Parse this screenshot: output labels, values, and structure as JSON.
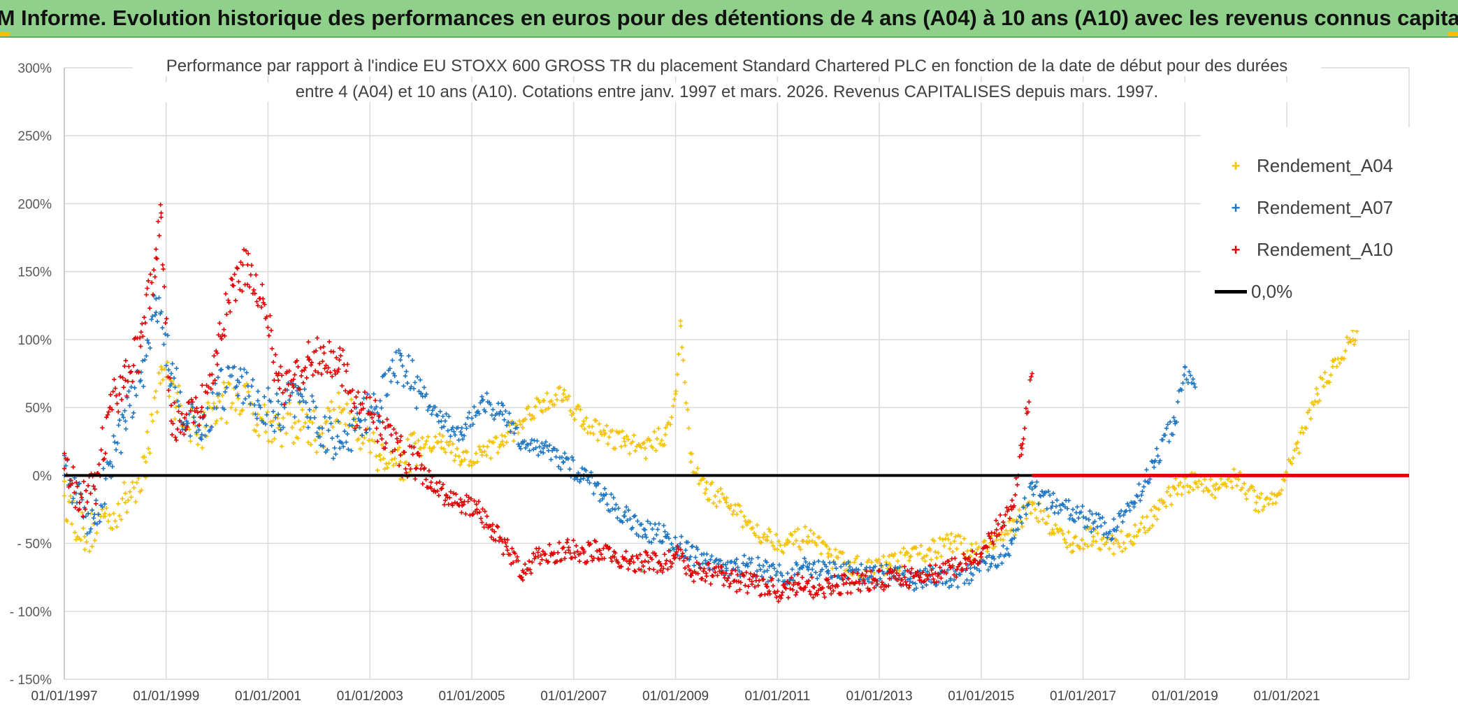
{
  "banner": {
    "title": "ADAM Informe. Evolution historique des performances en euros pour des détentions de 4 ans (A04) à 10 ans (A10) avec les revenus connus capitalisés"
  },
  "chart_data": {
    "type": "scatter",
    "title_line1": "Performance par rapport à l'indice EU STOXX 600 GROSS TR  du placement Standard Chartered PLC en fonction de la date de début pour des durées",
    "title_line2": "entre 4 (A04) et 10 ans (A10). Cotations entre janv. 1997 et mars. 2026. Revenus CAPITALISES depuis mars. 1997.",
    "xlabel": "",
    "ylabel": "",
    "x_range": [
      1997.0,
      2023.4
    ],
    "ylim": [
      -150,
      300
    ],
    "y_ticks": [
      -150,
      -100,
      -50,
      0,
      50,
      100,
      150,
      200,
      250,
      300
    ],
    "y_tick_labels": [
      "- 150%",
      "- 100%",
      "- 50%",
      "0%",
      "50%",
      "100%",
      "150%",
      "200%",
      "250%",
      "300%"
    ],
    "x_ticks": [
      1997,
      1999,
      2001,
      2003,
      2005,
      2007,
      2009,
      2011,
      2013,
      2015,
      2017,
      2019,
      2021
    ],
    "x_tick_labels": [
      "01/01/1997",
      "01/01/1999",
      "01/01/2001",
      "01/01/2003",
      "01/01/2005",
      "01/01/2007",
      "01/01/2009",
      "01/01/2011",
      "01/01/2013",
      "01/01/2015",
      "01/01/2017",
      "01/01/2019",
      "01/01/2021"
    ],
    "legend_position": "top-right",
    "grid": true,
    "series": [
      {
        "name": "Rendement_A04",
        "color": "#f5c000",
        "marker": "+",
        "x": [
          1997.0,
          1997.4,
          1997.8,
          1998.2,
          1998.6,
          1998.9,
          1999.2,
          1999.6,
          2000.0,
          2000.4,
          2000.8,
          2001.2,
          2001.6,
          2002.0,
          2002.4,
          2002.8,
          2003.2,
          2003.6,
          2004.0,
          2004.4,
          2004.8,
          2005.2,
          2005.6,
          2006.0,
          2006.4,
          2006.8,
          2007.2,
          2007.6,
          2008.0,
          2008.4,
          2008.8,
          2009.0,
          2009.1,
          2009.3,
          2009.6,
          2010.0,
          2010.4,
          2010.8,
          2011.2,
          2011.6,
          2012.0,
          2012.4,
          2012.8,
          2013.2,
          2013.6,
          2014.0,
          2014.4,
          2014.8,
          2015.2,
          2015.6,
          2016.0,
          2016.4,
          2016.8,
          2017.2,
          2017.6,
          2018.0,
          2018.4,
          2018.8,
          2019.2,
          2019.6,
          2020.0,
          2020.4,
          2020.8,
          2021.2,
          2021.6,
          2021.9,
          2022.3,
          2022.6
        ],
        "y": [
          -15,
          -45,
          -30,
          -20,
          10,
          80,
          55,
          30,
          50,
          60,
          45,
          35,
          40,
          30,
          50,
          35,
          15,
          10,
          20,
          25,
          10,
          15,
          25,
          40,
          55,
          60,
          40,
          30,
          25,
          20,
          30,
          60,
          110,
          10,
          -10,
          -20,
          -35,
          -45,
          -50,
          -45,
          -60,
          -65,
          -70,
          -65,
          -60,
          -55,
          -50,
          -55,
          -50,
          -40,
          -20,
          -40,
          -50,
          -45,
          -50,
          -45,
          -30,
          -10,
          -5,
          -10,
          0,
          -20,
          -15,
          20,
          60,
          80,
          100,
          125
        ]
      },
      {
        "name": "Rendement_A07",
        "color": "#1f77c4",
        "marker": "+",
        "x": [
          1997.0,
          1997.3,
          1997.6,
          1997.9,
          1998.2,
          1998.5,
          1998.8,
          1999.1,
          1999.4,
          1999.7,
          2000.0,
          2000.4,
          2000.8,
          2001.2,
          2001.6,
          2002.0,
          2002.4,
          2002.8,
          2003.2,
          2003.6,
          2004.0,
          2004.4,
          2004.8,
          2005.2,
          2005.6,
          2006.0,
          2006.4,
          2006.8,
          2007.2,
          2007.6,
          2008.0,
          2008.4,
          2008.8,
          2009.2,
          2009.6,
          2010.0,
          2010.4,
          2010.8,
          2011.2,
          2011.6,
          2012.0,
          2012.4,
          2012.8,
          2013.2,
          2013.6,
          2014.0,
          2014.4,
          2014.8,
          2015.2,
          2015.6,
          2016.0,
          2016.4,
          2016.8,
          2017.2,
          2017.6,
          2018.0,
          2018.4,
          2018.8,
          2019.0,
          2019.2
        ],
        "y": [
          0,
          -20,
          -35,
          10,
          40,
          70,
          130,
          75,
          40,
          30,
          60,
          70,
          55,
          45,
          60,
          35,
          25,
          40,
          55,
          85,
          60,
          40,
          30,
          55,
          45,
          25,
          20,
          10,
          0,
          -15,
          -30,
          -40,
          -45,
          -55,
          -65,
          -70,
          -65,
          -70,
          -72,
          -68,
          -72,
          -70,
          -75,
          -72,
          -78,
          -74,
          -76,
          -72,
          -65,
          -50,
          -10,
          -20,
          -25,
          -35,
          -40,
          -20,
          10,
          40,
          80,
          65
        ]
      },
      {
        "name": "Rendement_A10",
        "color": "#e30000",
        "marker": "+",
        "x": [
          1997.0,
          1997.3,
          1997.6,
          1997.9,
          1998.2,
          1998.5,
          1998.8,
          1998.9,
          1999.1,
          1999.4,
          1999.7,
          2000.0,
          2000.3,
          2000.6,
          2000.9,
          2001.2,
          2001.5,
          2001.8,
          2002.1,
          2002.4,
          2002.7,
          2003.0,
          2003.3,
          2003.6,
          2003.9,
          2004.2,
          2004.5,
          2004.8,
          2005.1,
          2005.4,
          2005.7,
          2006.0,
          2006.3,
          2006.6,
          2006.9,
          2007.2,
          2007.5,
          2007.8,
          2008.1,
          2008.4,
          2008.7,
          2009.0,
          2009.3,
          2009.6,
          2009.9,
          2010.2,
          2010.5,
          2010.8,
          2011.1,
          2011.4,
          2011.7,
          2012.0,
          2012.3,
          2012.6,
          2012.9,
          2013.2,
          2013.5,
          2013.8,
          2014.1,
          2014.4,
          2014.7,
          2015.0,
          2015.3,
          2015.6,
          2015.8,
          2016.0
        ],
        "y": [
          5,
          -20,
          -10,
          50,
          70,
          95,
          160,
          190,
          40,
          45,
          50,
          90,
          140,
          155,
          130,
          70,
          65,
          85,
          90,
          85,
          50,
          45,
          35,
          15,
          5,
          -5,
          -15,
          -20,
          -25,
          -40,
          -55,
          -70,
          -60,
          -58,
          -55,
          -57,
          -55,
          -60,
          -65,
          -63,
          -65,
          -58,
          -70,
          -72,
          -72,
          -78,
          -80,
          -82,
          -86,
          -80,
          -82,
          -82,
          -80,
          -78,
          -77,
          -76,
          -75,
          -75,
          -72,
          -68,
          -65,
          -60,
          -40,
          -25,
          20,
          75
        ]
      }
    ],
    "reference_line": {
      "name": "0,0%",
      "y": 0,
      "color": "#000000",
      "x_end": 2016.0
    },
    "flat_red_segment": {
      "name": "Rendement_A10",
      "y": 0,
      "x_start": 2016.0,
      "x_end": 2023.4
    }
  }
}
